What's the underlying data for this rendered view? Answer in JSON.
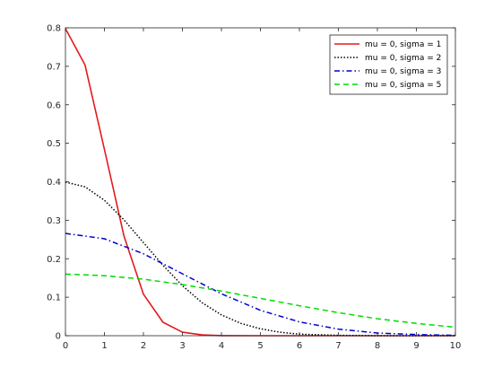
{
  "chart_data": {
    "type": "line",
    "title": "",
    "xlabel": "",
    "ylabel": "",
    "xlim": [
      0,
      10
    ],
    "ylim": [
      0,
      0.8
    ],
    "x_ticks": [
      "0",
      "1",
      "2",
      "3",
      "4",
      "5",
      "6",
      "7",
      "8",
      "9",
      "10"
    ],
    "y_ticks": [
      "0",
      "0.1",
      "0.2",
      "0.3",
      "0.4",
      "0.5",
      "0.6",
      "0.7",
      "0.8"
    ],
    "grid": false,
    "legend_position": "top-right",
    "series": [
      {
        "name": "mu = 0, sigma = 1",
        "color": "#e41a1c",
        "dash": "solid",
        "x": [
          0,
          0.5,
          1,
          1.5,
          2,
          2.5,
          3,
          3.5,
          4,
          5,
          6,
          7,
          8,
          9,
          10
        ],
        "y": [
          0.798,
          0.704,
          0.484,
          0.259,
          0.108,
          0.035,
          0.009,
          0.002,
          0.0003,
          0,
          0,
          0,
          0,
          0,
          0
        ]
      },
      {
        "name": "mu = 0, sigma = 2",
        "color": "#000000",
        "dash": "dotted",
        "x": [
          0,
          0.5,
          1,
          1.5,
          2,
          2.5,
          3,
          3.5,
          4,
          4.5,
          5,
          5.5,
          6,
          7,
          8,
          9,
          10
        ],
        "y": [
          0.399,
          0.387,
          0.352,
          0.301,
          0.242,
          0.183,
          0.13,
          0.086,
          0.054,
          0.032,
          0.018,
          0.009,
          0.004,
          0.001,
          0.0001,
          0,
          0
        ]
      },
      {
        "name": "mu = 0, sigma = 3",
        "color": "#0000cc",
        "dash": "dashdot",
        "x": [
          0,
          1,
          2,
          3,
          4,
          5,
          6,
          7,
          8,
          9,
          10
        ],
        "y": [
          0.266,
          0.252,
          0.213,
          0.161,
          0.109,
          0.066,
          0.036,
          0.017,
          0.007,
          0.003,
          0.001
        ]
      },
      {
        "name": "mu = 0, sigma = 5",
        "color": "#00dd00",
        "dash": "dashed",
        "x": [
          0,
          1,
          2,
          3,
          4,
          5,
          6,
          7,
          8,
          9,
          10
        ],
        "y": [
          0.16,
          0.156,
          0.147,
          0.133,
          0.116,
          0.097,
          0.078,
          0.06,
          0.044,
          0.032,
          0.022
        ]
      }
    ]
  }
}
